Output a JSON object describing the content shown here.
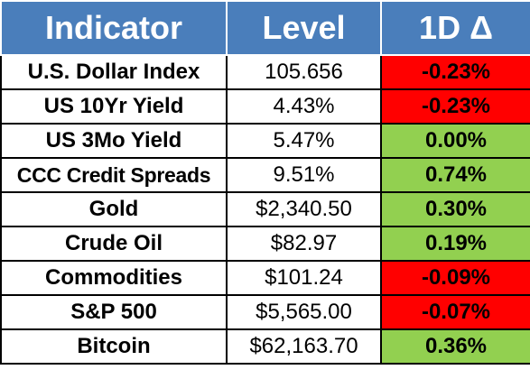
{
  "header": {
    "indicator_label": "Indicator",
    "level_label": "Level",
    "change_label": "1D Δ"
  },
  "colors": {
    "header_bg": "#4a7ebb",
    "negative": "#ff0000",
    "positive": "#92d050"
  },
  "rows": [
    {
      "indicator": "U.S. Dollar Index",
      "level": "105.656",
      "change": "-0.23%",
      "direction": "neg"
    },
    {
      "indicator": "US 10Yr Yield",
      "level": "4.43%",
      "change": "-0.23%",
      "direction": "neg"
    },
    {
      "indicator": "US 3Mo Yield",
      "level": "5.47%",
      "change": "0.00%",
      "direction": "pos"
    },
    {
      "indicator": "CCC Credit Spreads",
      "level": "9.51%",
      "change": "0.74%",
      "direction": "pos"
    },
    {
      "indicator": "Gold",
      "level": "$2,340.50",
      "change": "0.30%",
      "direction": "pos"
    },
    {
      "indicator": "Crude Oil",
      "level": "$82.97",
      "change": "0.19%",
      "direction": "pos"
    },
    {
      "indicator": "Commodities",
      "level": "$101.24",
      "change": "-0.09%",
      "direction": "neg"
    },
    {
      "indicator": "S&P 500",
      "level": "$5,565.00",
      "change": "-0.07%",
      "direction": "neg"
    },
    {
      "indicator": "Bitcoin",
      "level": "$62,163.70",
      "change": "0.36%",
      "direction": "pos"
    }
  ]
}
